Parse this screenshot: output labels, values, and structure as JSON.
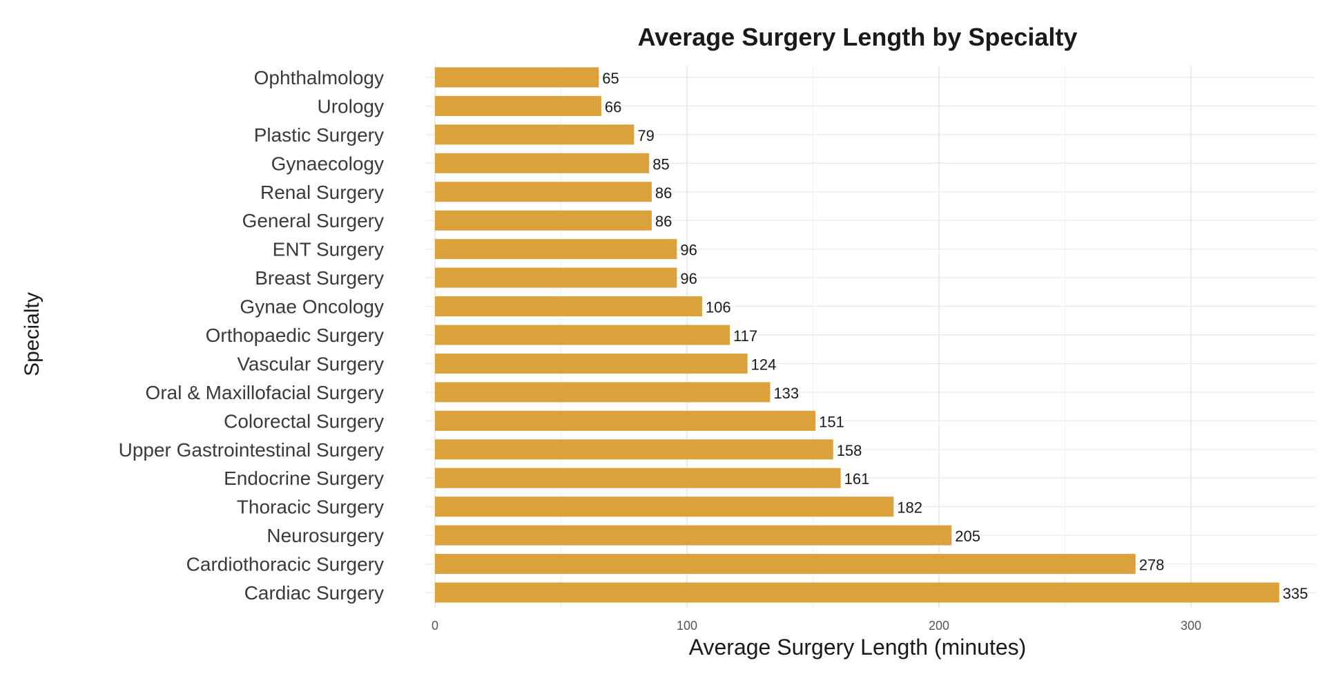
{
  "chart_data": {
    "type": "bar",
    "orientation": "horizontal",
    "title": "Average Surgery Length by Specialty",
    "xlabel": "Average Surgery Length (minutes)",
    "ylabel": "Specialty",
    "xlim": [
      0,
      350
    ],
    "x_ticks": [
      0,
      100,
      200,
      300
    ],
    "grid": true,
    "bar_color": "#DBA13A",
    "categories": [
      "Ophthalmology",
      "Urology",
      "Plastic Surgery",
      "Gynaecology",
      "Renal Surgery",
      "General Surgery",
      "ENT Surgery",
      "Breast Surgery",
      "Gynae Oncology",
      "Orthopaedic Surgery",
      "Vascular Surgery",
      "Oral & Maxillofacial Surgery",
      "Colorectal Surgery",
      "Upper Gastrointestinal Surgery",
      "Endocrine Surgery",
      "Thoracic Surgery",
      "Neurosurgery",
      "Cardiothoracic Surgery",
      "Cardiac Surgery"
    ],
    "values": [
      65,
      66,
      79,
      85,
      86,
      86,
      96,
      96,
      106,
      117,
      124,
      133,
      151,
      158,
      161,
      182,
      205,
      278,
      335
    ]
  }
}
